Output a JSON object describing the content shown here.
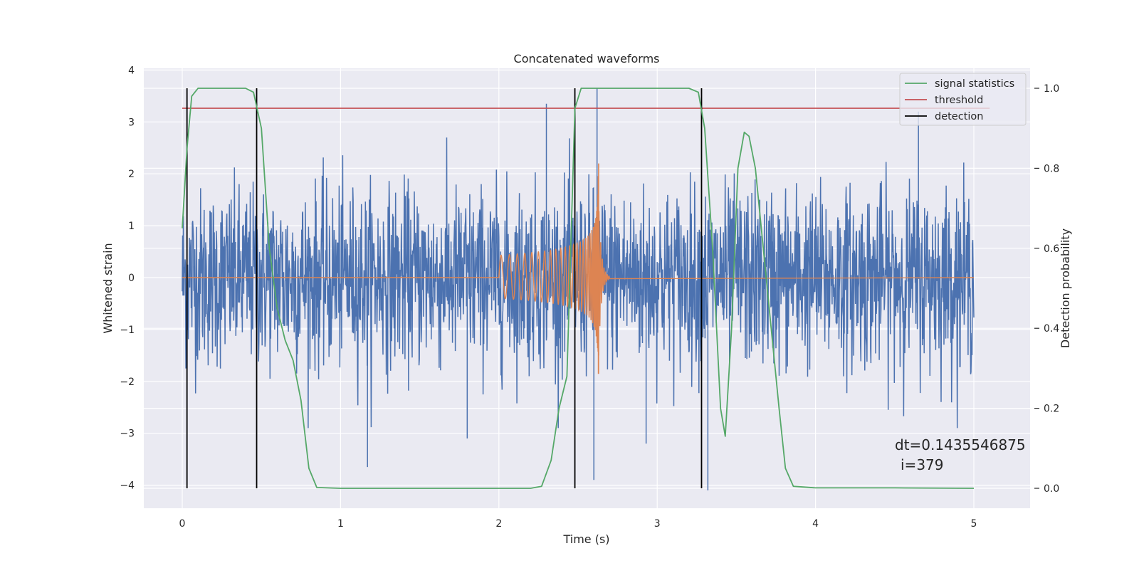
{
  "chart_data": {
    "type": "line",
    "title": "Concatenated waveforms",
    "xlabel": "Time (s)",
    "ylabel": "Whitened strain",
    "y2label": "Detection probability",
    "xlim": [
      -0.25,
      5.35
    ],
    "ylim": [
      -4.4,
      4.0
    ],
    "y2lim": [
      -0.047,
      1.047
    ],
    "grid": true,
    "legend_position": "top-right",
    "x_ticks": [
      "0",
      "1",
      "2",
      "3",
      "4",
      "5"
    ],
    "y_ticks": [
      "4",
      "3",
      "2",
      "1",
      "0",
      "−1",
      "−2",
      "−3",
      "−4"
    ],
    "y2_ticks": [
      "1.0",
      "0.8",
      "0.6",
      "0.4",
      "0.2",
      "0.0"
    ],
    "colors": {
      "strain": "#4c72b0",
      "template": "#dd8452",
      "signal_statistics": "#55a868",
      "threshold": "#c44e52",
      "detection": "#000000"
    },
    "series": [
      {
        "name": "signal statistics",
        "axis": "right",
        "x": [
          0.0,
          0.03,
          0.06,
          0.1,
          0.15,
          0.2,
          0.3,
          0.4,
          0.45,
          0.5,
          0.55,
          0.6,
          0.65,
          0.7,
          0.75,
          0.8,
          0.85,
          1.0,
          1.5,
          2.0,
          2.2,
          2.27,
          2.33,
          2.38,
          2.43,
          2.48,
          2.52,
          2.6,
          3.0,
          3.2,
          3.26,
          3.3,
          3.35,
          3.4,
          3.43,
          3.47,
          3.51,
          3.55,
          3.58,
          3.62,
          3.67,
          3.72,
          3.77,
          3.81,
          3.86,
          4.0,
          4.5,
          5.0
        ],
        "values": [
          0.65,
          0.85,
          0.98,
          1.0,
          1.0,
          1.0,
          1.0,
          1.0,
          0.99,
          0.9,
          0.6,
          0.45,
          0.37,
          0.32,
          0.22,
          0.05,
          0.002,
          0.0,
          0.0,
          0.0,
          0.0,
          0.005,
          0.07,
          0.2,
          0.28,
          0.95,
          1.0,
          1.0,
          1.0,
          1.0,
          0.99,
          0.9,
          0.6,
          0.2,
          0.13,
          0.4,
          0.8,
          0.89,
          0.88,
          0.8,
          0.6,
          0.4,
          0.2,
          0.05,
          0.005,
          0.001,
          0.001,
          0.0
        ]
      },
      {
        "name": "threshold",
        "axis": "right",
        "x": [
          0.0,
          5.1
        ],
        "values": [
          0.95,
          0.95
        ]
      },
      {
        "name": "detection",
        "axis": "right",
        "x": [
          0.03,
          0.47,
          2.48,
          3.28
        ],
        "y_range": [
          0.0,
          1.0
        ]
      },
      {
        "name": "",
        "axis": "left",
        "style": "noise",
        "x_range": [
          0.0,
          5.0
        ],
        "envelope": 2.0,
        "spike_min": -3.9,
        "spike_max": 3.3
      },
      {
        "name": "",
        "axis": "left",
        "style": "chirp",
        "x_range": [
          2.0,
          2.63
        ],
        "amplitude_start": 0.4,
        "amplitude_peak": [
          2.2,
          -1.5
        ],
        "peak_x": 2.63,
        "ringdown_end": 2.7
      }
    ],
    "annotations": [
      "dt=0.1435546875",
      "i=379"
    ]
  },
  "legend": [
    {
      "label": "signal statistics",
      "color": "#55a868"
    },
    {
      "label": "threshold",
      "color": "#c44e52"
    },
    {
      "label": "detection",
      "color": "#000000"
    }
  ]
}
